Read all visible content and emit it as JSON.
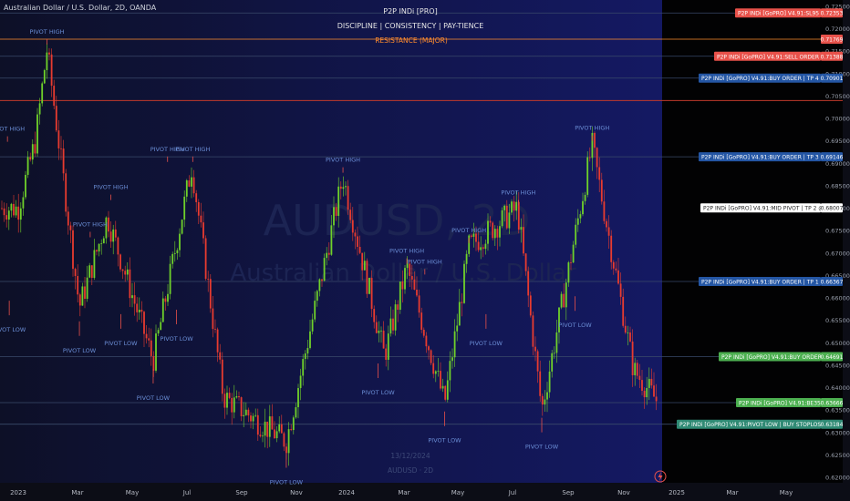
{
  "symbol_title": "Australian Dollar / U.S. Dollar, 2D, OANDA",
  "indicator_title": "P2P INDi [PRO]",
  "indicator_subtitle": "DISCIPLINE  |  CONSISTENCY  |  PAY-TIENCE",
  "watermark": {
    "symbol": "AUDUSD, 2D",
    "name": "Australian Dollar / U.S. Dollar"
  },
  "bottom_stamp": {
    "date": "13/12/2024",
    "symbol": "AUDUSD · 2D"
  },
  "colors": {
    "background": "#0c0d16",
    "chart_panel": "#10133a",
    "future_panel": "#020203",
    "bull": "#6fd12a",
    "bear": "#e83b2f",
    "resistance": "#ff8c2e",
    "price_badge": "#e8514a",
    "blue_badge": "#2456a4",
    "green_badge": "#4caf50",
    "teal_badge": "#2f8a74"
  },
  "levels": [
    {
      "key": "top",
      "value": 0.72353,
      "label": "P2P INDi [GoPRO] V4.91:SL95 @",
      "price": "0.72353",
      "style": "red",
      "line": "#3a4a6a"
    },
    {
      "key": "resistance",
      "value": 0.71769,
      "label": "RESISTANCE (MAJOR)",
      "price": "0.71769",
      "style": "resistance",
      "line": "#ff8c2e"
    },
    {
      "key": "sell",
      "value": 0.71388,
      "label": "P2P INDi [GoPRO] V4.91:SELL ORDER @",
      "price": "0.71388",
      "style": "red",
      "line": "#3a4a6a"
    },
    {
      "key": "tp4",
      "value": 0.70901,
      "label": "P2P INDi [GoPRO] V4.91:BUY ORDER | TP 4 @",
      "price": "0.70901",
      "style": "blue",
      "line": "#3a4a6a"
    },
    {
      "key": "redline",
      "value": 0.704,
      "label": "",
      "price": "",
      "style": "none",
      "line": "#c0392b"
    },
    {
      "key": "tp3",
      "value": 0.69146,
      "label": "P2P INDi [GoPRO] V4.91:BUY ORDER | TP 3 @",
      "price": "0.69146",
      "style": "blue",
      "line": "#3a4a6a"
    },
    {
      "key": "tp2",
      "value": 0.68007,
      "label": "P2P INDi [GoPRO] V4.91:MID PIVOT | TP 2 @",
      "price": "0.68007",
      "style": "white",
      "line": "none"
    },
    {
      "key": "tp1",
      "value": 0.66367,
      "label": "P2P INDi [GoPRO] V4.91:BUY ORDER | TP 1 @",
      "price": "0.66367",
      "style": "blue",
      "line": "#3a4a6a"
    },
    {
      "key": "buy",
      "value": 0.64691,
      "label": "P2P INDi [GoPRO] V4.91:BUY ORDER @",
      "price": "0.64691",
      "style": "green",
      "line": "#3a4a6a"
    },
    {
      "key": "current",
      "value": 0.63666,
      "label": "P2P INDi [GoPRO] V4.91:BE35 @",
      "price": "0.63666",
      "style": "green",
      "line": "#3a4a6a"
    },
    {
      "key": "stoploss",
      "value": 0.63184,
      "label": "P2P INDi [GoPRO] V4.91:PIVOT LOW | BUY STOPLOSS @",
      "price": "0.63184",
      "style": "teal",
      "line": "#3a4a6a"
    }
  ],
  "chart_data": {
    "type": "candlestick",
    "title": "Australian Dollar / U.S. Dollar, 2D, OANDA",
    "ylim": [
      0.618,
      0.7255
    ],
    "y_ticks": [
      0.62,
      0.625,
      0.63,
      0.635,
      0.64,
      0.645,
      0.65,
      0.655,
      0.66,
      0.665,
      0.67,
      0.675,
      0.68,
      0.685,
      0.69,
      0.695,
      0.7,
      0.705,
      0.71,
      0.715,
      0.72,
      0.725
    ],
    "x_ticks": [
      "2023",
      "Mar",
      "May",
      "Jul",
      "Sep",
      "Nov",
      "2024",
      "Mar",
      "May",
      "Jul",
      "Sep",
      "Nov",
      "2025",
      "Mar",
      "May"
    ],
    "price_path": [
      [
        "2023-01-01",
        0.68
      ],
      [
        "2023-01-20",
        0.695
      ],
      [
        "2023-02-02",
        0.7155
      ],
      [
        "2023-03-10",
        0.658
      ],
      [
        "2023-04-10",
        0.678
      ],
      [
        "2023-05-31",
        0.646
      ],
      [
        "2023-07-13",
        0.6895
      ],
      [
        "2023-08-17",
        0.638
      ],
      [
        "2023-10-26",
        0.628
      ],
      [
        "2023-12-28",
        0.687
      ],
      [
        "2024-02-12",
        0.647
      ],
      [
        "2024-03-08",
        0.6668
      ],
      [
        "2024-04-19",
        0.6365
      ],
      [
        "2024-05-16",
        0.6714
      ],
      [
        "2024-07-09",
        0.68
      ],
      [
        "2024-08-05",
        0.635
      ],
      [
        "2024-09-30",
        0.694
      ],
      [
        "2024-11-15",
        0.644
      ],
      [
        "2024-12-13",
        0.6365
      ]
    ],
    "pivots": [
      {
        "label": "PIVOT HIGH",
        "date": "2023-02-02",
        "price": 0.7157
      },
      {
        "label": "PIVOT HIGH",
        "date": "2022-12-20",
        "price": 0.694
      },
      {
        "label": "PIVOT HIGH",
        "date": "2023-03-22",
        "price": 0.6727
      },
      {
        "label": "PIVOT HIGH",
        "date": "2023-04-14",
        "price": 0.681
      },
      {
        "label": "PIVOT HIGH",
        "date": "2023-06-16",
        "price": 0.6895
      },
      {
        "label": "PIVOT HIGH",
        "date": "2023-07-14",
        "price": 0.6895
      },
      {
        "label": "PIVOT HIGH",
        "date": "2023-12-28",
        "price": 0.6871
      },
      {
        "label": "PIVOT HIGH",
        "date": "2024-03-08",
        "price": 0.6668
      },
      {
        "label": "PIVOT HIGH",
        "date": "2024-03-28",
        "price": 0.6644
      },
      {
        "label": "PIVOT HIGH",
        "date": "2024-05-16",
        "price": 0.6714
      },
      {
        "label": "PIVOT HIGH",
        "date": "2024-07-10",
        "price": 0.6798
      },
      {
        "label": "PIVOT HIGH",
        "date": "2024-09-30",
        "price": 0.6942
      },
      {
        "label": "PIVOT LOW",
        "date": "2022-12-22",
        "price": 0.661
      },
      {
        "label": "PIVOT LOW",
        "date": "2023-03-10",
        "price": 0.6564
      },
      {
        "label": "PIVOT LOW",
        "date": "2023-04-25",
        "price": 0.658
      },
      {
        "label": "PIVOT LOW",
        "date": "2023-05-31",
        "price": 0.6458
      },
      {
        "label": "PIVOT LOW",
        "date": "2023-06-26",
        "price": 0.659
      },
      {
        "label": "PIVOT LOW",
        "date": "2023-10-26",
        "price": 0.627
      },
      {
        "label": "PIVOT LOW",
        "date": "2024-02-05",
        "price": 0.647
      },
      {
        "label": "PIVOT LOW",
        "date": "2024-04-19",
        "price": 0.6363
      },
      {
        "label": "PIVOT LOW",
        "date": "2024-06-04",
        "price": 0.658
      },
      {
        "label": "PIVOT LOW",
        "date": "2024-08-05",
        "price": 0.6349
      },
      {
        "label": "PIVOT LOW",
        "date": "2024-09-11",
        "price": 0.662
      }
    ]
  }
}
